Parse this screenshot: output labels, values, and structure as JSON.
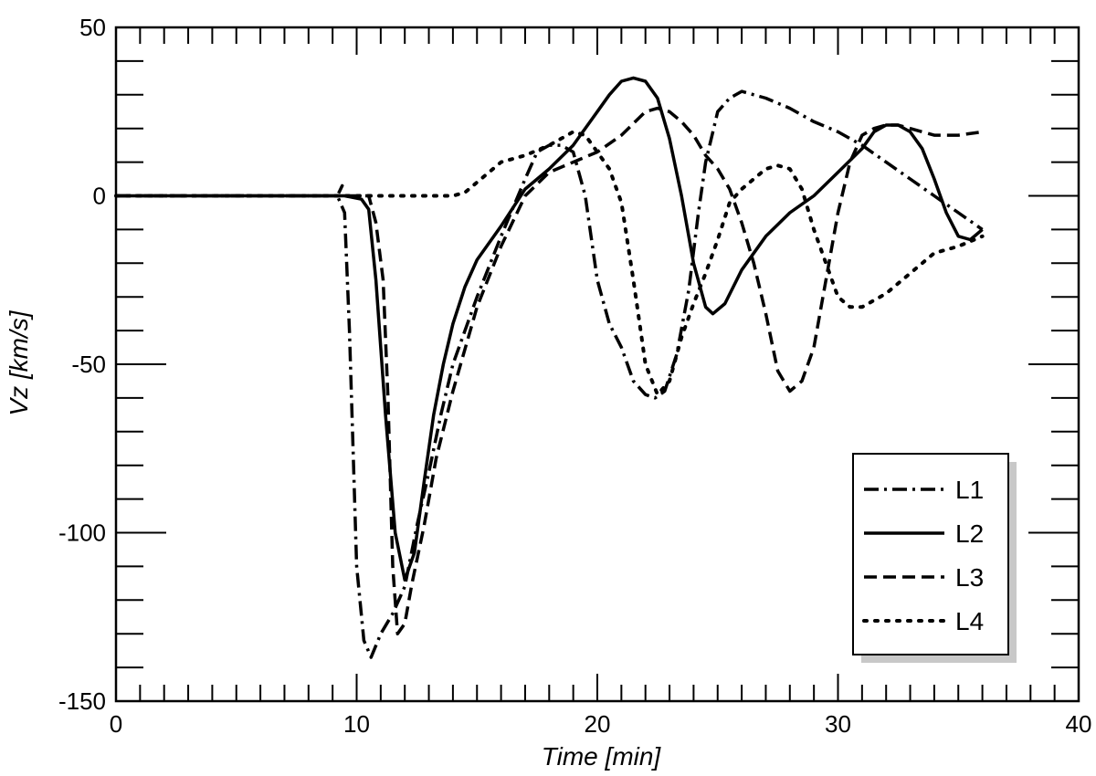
{
  "chart_data": {
    "type": "line",
    "xlabel": "Time [min]",
    "ylabel": "Vz [km/s]",
    "xlim": [
      0,
      40
    ],
    "ylim": [
      -150,
      50
    ],
    "xticks": [
      0,
      10,
      20,
      30,
      40
    ],
    "yticks": [
      50,
      0,
      -50,
      -100,
      -150
    ],
    "xtick_labels": [
      "0",
      "10",
      "20",
      "30",
      "40"
    ],
    "ytick_labels": [
      "50",
      "0",
      "-50",
      "-100",
      "-150"
    ],
    "grid": false,
    "legend_position": "bottom-right",
    "series": [
      {
        "name": "L1",
        "style": "dashdot",
        "points": [
          [
            0,
            0
          ],
          [
            5,
            0
          ],
          [
            9.2,
            0
          ],
          [
            9.4,
            3
          ],
          [
            9.2,
            0
          ],
          [
            9.5,
            -5
          ],
          [
            9.7,
            -40
          ],
          [
            10.0,
            -110
          ],
          [
            10.3,
            -132
          ],
          [
            10.6,
            -137
          ],
          [
            11.0,
            -130
          ],
          [
            11.5,
            -124
          ],
          [
            12.0,
            -116
          ],
          [
            12.5,
            -98
          ],
          [
            13.0,
            -82
          ],
          [
            13.5,
            -65
          ],
          [
            14.0,
            -50
          ],
          [
            15.0,
            -30
          ],
          [
            16.0,
            -12
          ],
          [
            17.0,
            5
          ],
          [
            17.5,
            13
          ],
          [
            18.0,
            15
          ],
          [
            18.5,
            15
          ],
          [
            19.0,
            13
          ],
          [
            19.5,
            0
          ],
          [
            20.0,
            -25
          ],
          [
            20.5,
            -38
          ],
          [
            21.0,
            -45
          ],
          [
            21.5,
            -55
          ],
          [
            22.0,
            -59
          ],
          [
            22.4,
            -60
          ],
          [
            22.8,
            -58
          ],
          [
            23.3,
            -47
          ],
          [
            23.8,
            -28
          ],
          [
            24.2,
            -5
          ],
          [
            24.5,
            10
          ],
          [
            25.0,
            25
          ],
          [
            25.5,
            29
          ],
          [
            26.0,
            31
          ],
          [
            26.5,
            30
          ],
          [
            27.0,
            29
          ],
          [
            28.0,
            26
          ],
          [
            29.0,
            22
          ],
          [
            30.0,
            19
          ],
          [
            31.0,
            15
          ],
          [
            32.0,
            10
          ],
          [
            33.0,
            5
          ],
          [
            34.0,
            0
          ],
          [
            35.0,
            -5
          ],
          [
            36.0,
            -10
          ]
        ]
      },
      {
        "name": "L2",
        "style": "solid",
        "points": [
          [
            0,
            0
          ],
          [
            5,
            0
          ],
          [
            9.5,
            0
          ],
          [
            10.2,
            -1
          ],
          [
            10.5,
            -4
          ],
          [
            10.8,
            -25
          ],
          [
            11.2,
            -65
          ],
          [
            11.6,
            -100
          ],
          [
            12.0,
            -114
          ],
          [
            12.4,
            -106
          ],
          [
            12.8,
            -85
          ],
          [
            13.2,
            -65
          ],
          [
            13.6,
            -50
          ],
          [
            14.0,
            -38
          ],
          [
            14.5,
            -27
          ],
          [
            15.0,
            -19
          ],
          [
            16.0,
            -9
          ],
          [
            17.0,
            2
          ],
          [
            18.0,
            8
          ],
          [
            19.0,
            15
          ],
          [
            20.0,
            25
          ],
          [
            20.5,
            30
          ],
          [
            21.0,
            34
          ],
          [
            21.5,
            35
          ],
          [
            22.0,
            34
          ],
          [
            22.5,
            29
          ],
          [
            23.0,
            17
          ],
          [
            23.5,
            0
          ],
          [
            24.0,
            -20
          ],
          [
            24.5,
            -33
          ],
          [
            24.8,
            -35
          ],
          [
            25.3,
            -32
          ],
          [
            26.0,
            -22
          ],
          [
            27.0,
            -12
          ],
          [
            28.0,
            -5
          ],
          [
            29.0,
            0
          ],
          [
            30.0,
            7
          ],
          [
            31.0,
            14
          ],
          [
            31.5,
            19
          ],
          [
            32.0,
            21
          ],
          [
            32.5,
            21
          ],
          [
            33.0,
            19
          ],
          [
            33.5,
            14
          ],
          [
            34.0,
            5
          ],
          [
            34.5,
            -5
          ],
          [
            35.0,
            -12
          ],
          [
            35.5,
            -13
          ],
          [
            36.0,
            -10
          ]
        ]
      },
      {
        "name": "L3",
        "style": "dashed",
        "points": [
          [
            0,
            0
          ],
          [
            5,
            0
          ],
          [
            10.5,
            0
          ],
          [
            10.8,
            -8
          ],
          [
            11.1,
            -25
          ],
          [
            11.3,
            -60
          ],
          [
            11.5,
            -110
          ],
          [
            11.7,
            -130
          ],
          [
            12.0,
            -127
          ],
          [
            12.3,
            -115
          ],
          [
            12.8,
            -98
          ],
          [
            13.3,
            -78
          ],
          [
            14.0,
            -58
          ],
          [
            15.0,
            -33
          ],
          [
            16.0,
            -15
          ],
          [
            17.0,
            0
          ],
          [
            18.0,
            7
          ],
          [
            19.0,
            10
          ],
          [
            20.0,
            13
          ],
          [
            21.0,
            18
          ],
          [
            22.0,
            25
          ],
          [
            22.5,
            26
          ],
          [
            23.0,
            25
          ],
          [
            23.5,
            22
          ],
          [
            24.0,
            18
          ],
          [
            24.5,
            12
          ],
          [
            25.0,
            8
          ],
          [
            25.5,
            2
          ],
          [
            26.0,
            -8
          ],
          [
            26.5,
            -20
          ],
          [
            27.0,
            -35
          ],
          [
            27.5,
            -52
          ],
          [
            28.0,
            -58
          ],
          [
            28.5,
            -55
          ],
          [
            29.0,
            -45
          ],
          [
            29.5,
            -25
          ],
          [
            30.0,
            -5
          ],
          [
            30.5,
            10
          ],
          [
            31.0,
            18
          ],
          [
            31.5,
            20
          ],
          [
            32.0,
            21
          ],
          [
            32.5,
            21
          ],
          [
            33.0,
            20
          ],
          [
            34.0,
            18
          ],
          [
            35.0,
            18
          ],
          [
            36.0,
            19
          ]
        ]
      },
      {
        "name": "L4",
        "style": "dotted",
        "points": [
          [
            0,
            0
          ],
          [
            5,
            0
          ],
          [
            10,
            0
          ],
          [
            11,
            0
          ],
          [
            12,
            0
          ],
          [
            13,
            0
          ],
          [
            14,
            0
          ],
          [
            14.5,
            1
          ],
          [
            15,
            4
          ],
          [
            16,
            10
          ],
          [
            17,
            12
          ],
          [
            18,
            15
          ],
          [
            18.5,
            17
          ],
          [
            19,
            19
          ],
          [
            19.5,
            18
          ],
          [
            20,
            13
          ],
          [
            20.5,
            8
          ],
          [
            21,
            -2
          ],
          [
            21.5,
            -25
          ],
          [
            22,
            -50
          ],
          [
            22.5,
            -59
          ],
          [
            23,
            -55
          ],
          [
            23.5,
            -42
          ],
          [
            24,
            -32
          ],
          [
            24.5,
            -23
          ],
          [
            25,
            -13
          ],
          [
            25.5,
            -2
          ],
          [
            26,
            2
          ],
          [
            26.5,
            5
          ],
          [
            27,
            8
          ],
          [
            27.5,
            9
          ],
          [
            28,
            8
          ],
          [
            28.5,
            2
          ],
          [
            29,
            -10
          ],
          [
            29.5,
            -20
          ],
          [
            30,
            -30
          ],
          [
            30.5,
            -33
          ],
          [
            31,
            -33
          ],
          [
            32,
            -29
          ],
          [
            33,
            -23
          ],
          [
            34,
            -17
          ],
          [
            35,
            -15
          ],
          [
            36,
            -12
          ]
        ]
      }
    ]
  }
}
